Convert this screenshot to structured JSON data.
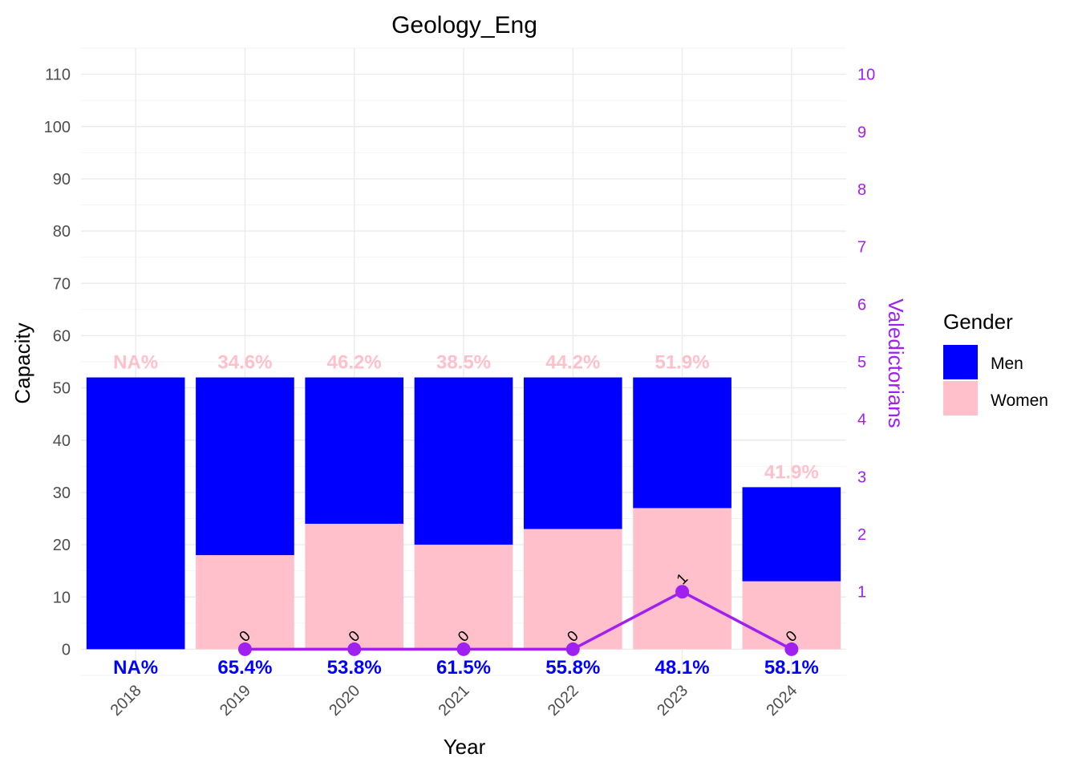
{
  "colors": {
    "men": "#0000ff",
    "women": "#ffc0cb",
    "line": "#a020f0",
    "grid": "#ebebeb"
  },
  "chart_data": {
    "type": "bar",
    "subtype": "stacked bar with secondary-axis line",
    "title": "Geology_Eng",
    "xlabel": "Year",
    "ylabel": "Capacity",
    "y2label": "Valedictorians",
    "categories": [
      "2018",
      "2019",
      "2020",
      "2021",
      "2022",
      "2023",
      "2024"
    ],
    "series": [
      {
        "name": "Men",
        "values": [
          52,
          34,
          28,
          32,
          29,
          25,
          18
        ]
      },
      {
        "name": "Women",
        "values": [
          0,
          18,
          24,
          20,
          23,
          27,
          13
        ]
      }
    ],
    "totals": [
      52,
      52,
      52,
      52,
      52,
      52,
      31
    ],
    "line_series": {
      "axis": "secondary",
      "x": [
        "2019",
        "2020",
        "2021",
        "2022",
        "2023",
        "2024"
      ],
      "values": [
        0,
        0,
        0,
        0,
        1,
        0
      ],
      "labels": [
        "0",
        "0",
        "0",
        "0",
        "1",
        "0"
      ]
    },
    "top_labels": [
      "NA%",
      "34.6%",
      "46.2%",
      "38.5%",
      "44.2%",
      "51.9%",
      "41.9%"
    ],
    "bottom_labels": [
      "NA%",
      "65.4%",
      "53.8%",
      "61.5%",
      "55.8%",
      "48.1%",
      "58.1%"
    ],
    "y_ticks": [
      "0",
      "10",
      "20",
      "30",
      "40",
      "50",
      "60",
      "70",
      "80",
      "90",
      "100",
      "110"
    ],
    "y2_ticks": [
      "1",
      "2",
      "3",
      "4",
      "5",
      "6",
      "7",
      "8",
      "9",
      "10"
    ],
    "ylim": [
      -5,
      115
    ],
    "y2_scale": 11,
    "grid": true,
    "legend": {
      "title": "Gender",
      "position": "right",
      "items": [
        {
          "label": "Men",
          "color": "#0000ff"
        },
        {
          "label": "Women",
          "color": "#ffc0cb"
        }
      ]
    }
  }
}
